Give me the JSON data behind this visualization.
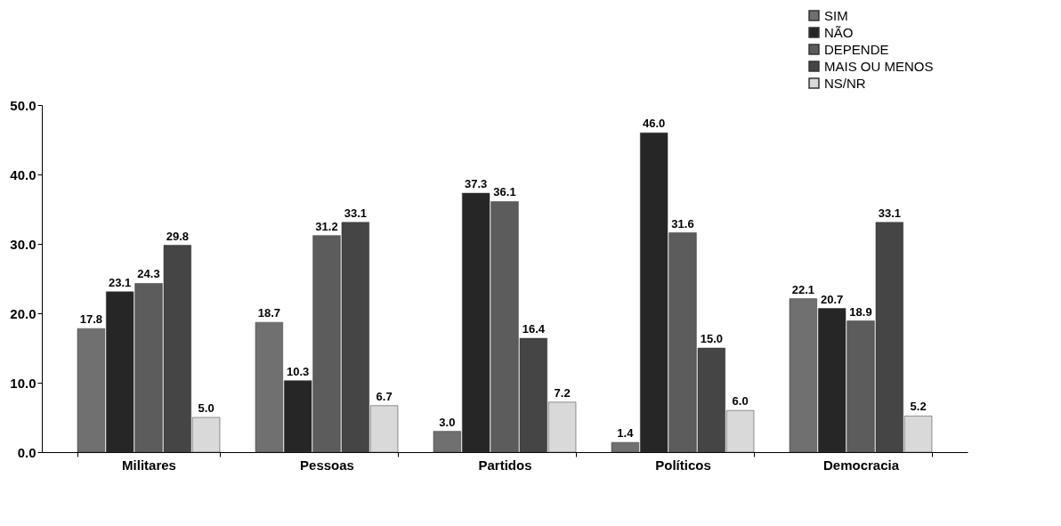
{
  "chart_data": {
    "type": "bar",
    "categories": [
      "Militares",
      "Pessoas",
      "Partidos",
      "Políticos",
      "Democracia"
    ],
    "series": [
      {
        "name": "SIM",
        "color": "#707070",
        "values": [
          17.8,
          18.7,
          3.0,
          1.4,
          22.1
        ],
        "value_labels": [
          "17.8",
          "18.7",
          "3.0",
          "1.4",
          "22.1"
        ]
      },
      {
        "name": "NÃO",
        "color": "#262626",
        "values": [
          23.1,
          10.3,
          37.3,
          46.0,
          20.7
        ],
        "value_labels": [
          "23.1",
          "10.3",
          "37.3",
          "46.0",
          "20.7"
        ]
      },
      {
        "name": "DEPENDE",
        "color": "#5c5c5c",
        "values": [
          24.3,
          31.2,
          36.1,
          31.6,
          18.9
        ],
        "value_labels": [
          "24.3",
          "31.2",
          "36.1",
          "31.6",
          "18.9"
        ]
      },
      {
        "name": "MAIS OU MENOS",
        "color": "#454545",
        "values": [
          29.8,
          33.1,
          16.4,
          15.0,
          33.1
        ],
        "value_labels": [
          "29.8",
          "33.1",
          "16.4",
          "15.0",
          "33.1"
        ]
      },
      {
        "name": "NS/NR",
        "color": "#d9d9d9",
        "values": [
          5.0,
          6.7,
          7.2,
          6.0,
          5.2
        ],
        "value_labels": [
          "5.0",
          "6.7",
          "7.2",
          "6.0",
          "5.2"
        ]
      }
    ],
    "ylim": [
      0,
      50
    ],
    "yticks": [
      {
        "value": 0,
        "label": "0.0"
      },
      {
        "value": 10,
        "label": "10.0"
      },
      {
        "value": 20,
        "label": "20.0"
      },
      {
        "value": 30,
        "label": "30.0"
      },
      {
        "value": 40,
        "label": "40.0"
      },
      {
        "value": 50,
        "label": "50.0"
      }
    ],
    "grid": false,
    "legend": "top right"
  }
}
